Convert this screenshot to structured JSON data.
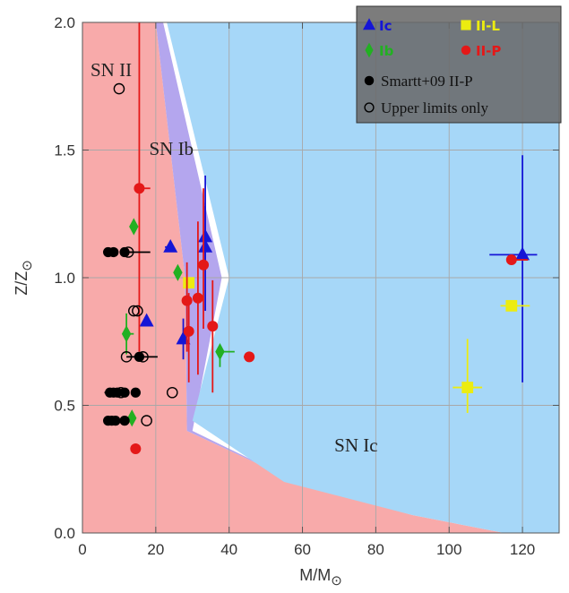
{
  "chart_data": {
    "type": "scatter",
    "title": "",
    "xlabel_main": "M/M",
    "xlabel_sub": "⊙",
    "ylabel_main": "Z/Z",
    "ylabel_sub": "⊙",
    "xlim": [
      0,
      130
    ],
    "ylim": [
      0.0,
      2.0
    ],
    "x_ticks": [
      0,
      20,
      40,
      60,
      80,
      100,
      120
    ],
    "y_ticks": [
      0.0,
      0.5,
      1.0,
      1.5,
      2.0
    ],
    "x_tick_labels": [
      "0",
      "20",
      "40",
      "60",
      "80",
      "100",
      "120"
    ],
    "y_tick_labels": [
      "0.0",
      "0.5",
      "1.0",
      "1.5",
      "2.0"
    ],
    "grid": true,
    "regions": [
      {
        "label": "SN II",
        "color": "#f8aaaa",
        "boundary": [
          [
            0,
            0
          ],
          [
            0,
            2
          ],
          [
            20,
            2
          ],
          [
            28,
            1.0
          ],
          [
            28.5,
            0.4
          ],
          [
            60,
            0.19
          ],
          [
            90,
            0.07
          ],
          [
            115,
            0
          ]
        ]
      },
      {
        "label": "SN Ib",
        "color": "#b4a6ee",
        "boundary": [
          [
            20,
            2
          ],
          [
            22,
            2
          ],
          [
            38,
            1.0
          ],
          [
            30,
            0.4
          ],
          [
            60,
            0.19
          ],
          [
            90,
            0.07
          ],
          [
            115,
            0
          ],
          [
            90,
            0.07
          ],
          [
            60,
            0.19
          ],
          [
            28.5,
            0.4
          ],
          [
            28,
            1.0
          ]
        ]
      },
      {
        "label": "SN Ic",
        "color": "#a6d7f8",
        "boundary": [
          [
            23,
            2
          ],
          [
            130,
            2
          ],
          [
            130,
            0
          ],
          [
            115,
            0
          ],
          [
            90,
            0.07
          ],
          [
            55,
            0.2
          ],
          [
            30,
            0.44
          ],
          [
            40,
            1.0
          ]
        ]
      }
    ],
    "region_labels": [
      {
        "text": "SN II",
        "x": 2.2,
        "y": 1.79
      },
      {
        "text": "SN Ib",
        "x": 18.2,
        "y": 1.48
      },
      {
        "text": "SN Ic",
        "x": 68.7,
        "y": 0.32
      }
    ],
    "legend": {
      "position": "top-right",
      "entries": [
        {
          "label": "Ic",
          "marker": "triangle",
          "color": "#1515d6"
        },
        {
          "label": "II-L",
          "marker": "square",
          "color": "#ecec10"
        },
        {
          "label": "Ib",
          "marker": "diamond",
          "color": "#22b022"
        },
        {
          "label": "II-P",
          "marker": "circle",
          "color": "#e41818"
        },
        {
          "label": "Smartt+09 II-P",
          "marker": "circle",
          "color": "#000000"
        },
        {
          "label": "Upper limits only",
          "marker": "open-circle",
          "color": "#000000"
        }
      ]
    },
    "series": [
      {
        "type": "Ic",
        "marker": "triangle",
        "color": "#1515d6",
        "points": [
          {
            "x": 24,
            "y": 1.12,
            "xerr": [
              1.5,
              0
            ],
            "yerr": [
              0,
              0
            ]
          },
          {
            "x": 33.5,
            "y": 1.16,
            "xerr": [
              0,
              0
            ],
            "yerr": [
              0.12,
              0.12
            ]
          },
          {
            "x": 33.5,
            "y": 1.12,
            "xerr": [
              0,
              0
            ],
            "yerr": [
              0.25,
              0.28
            ]
          },
          {
            "x": 17.5,
            "y": 0.83,
            "xerr": [
              0,
              0
            ],
            "yerr": [
              0,
              0
            ]
          },
          {
            "x": 27.5,
            "y": 0.76,
            "xerr": [
              0,
              0
            ],
            "yerr": [
              0.08,
              0.08
            ]
          },
          {
            "x": 120,
            "y": 1.09,
            "xerr": [
              9,
              4
            ],
            "yerr": [
              0.5,
              0.39
            ]
          }
        ]
      },
      {
        "type": "II-L",
        "marker": "square",
        "color": "#ecec10",
        "points": [
          {
            "x": 29,
            "y": 0.98,
            "xerr": [
              0,
              0
            ],
            "yerr": [
              0,
              0
            ]
          },
          {
            "x": 105,
            "y": 0.57,
            "xerr": [
              4,
              4
            ],
            "yerr": [
              0.1,
              0.19
            ]
          },
          {
            "x": 117,
            "y": 0.89,
            "xerr": [
              3,
              5
            ],
            "yerr": [
              0,
              0
            ]
          }
        ]
      },
      {
        "type": "Ib",
        "marker": "diamond",
        "color": "#22b022",
        "points": [
          {
            "x": 14,
            "y": 1.2,
            "xerr": [
              0,
              0
            ],
            "yerr": [
              0,
              0
            ]
          },
          {
            "x": 26,
            "y": 1.02,
            "xerr": [
              0,
              0
            ],
            "yerr": [
              0,
              0
            ]
          },
          {
            "x": 12,
            "y": 0.78,
            "xerr": [
              0,
              2
            ],
            "yerr": [
              0.08,
              0.08
            ]
          },
          {
            "x": 37.5,
            "y": 0.71,
            "xerr": [
              0,
              4
            ],
            "yerr": [
              0.06,
              0
            ]
          },
          {
            "x": 13.5,
            "y": 0.45,
            "xerr": [
              0,
              0
            ],
            "yerr": [
              0,
              0
            ]
          }
        ]
      },
      {
        "type": "II-P",
        "marker": "circle",
        "color": "#e41818",
        "points": [
          {
            "x": 15.5,
            "y": 1.35,
            "xerr": [
              0,
              3
            ],
            "yerr": [
              0.64,
              0.65
            ]
          },
          {
            "x": 33,
            "y": 1.05,
            "xerr": [
              0,
              0
            ],
            "yerr": [
              0.25,
              0.3
            ]
          },
          {
            "x": 31.5,
            "y": 0.92,
            "xerr": [
              0,
              0
            ],
            "yerr": [
              0.3,
              0.3
            ]
          },
          {
            "x": 28.5,
            "y": 0.91,
            "xerr": [
              0,
              0
            ],
            "yerr": [
              0.2,
              0.15
            ]
          },
          {
            "x": 29,
            "y": 0.79,
            "xerr": [
              0,
              0
            ],
            "yerr": [
              0.2,
              0.15
            ]
          },
          {
            "x": 35.5,
            "y": 0.81,
            "xerr": [
              0,
              0
            ],
            "yerr": [
              0.26,
              0.18
            ]
          },
          {
            "x": 45.5,
            "y": 0.69,
            "xerr": [
              1.5,
              0
            ],
            "yerr": [
              0,
              0
            ]
          },
          {
            "x": 14.5,
            "y": 0.33,
            "xerr": [
              0,
              0
            ],
            "yerr": [
              0,
              0
            ]
          },
          {
            "x": 117,
            "y": 1.07,
            "xerr": [
              0,
              4.5
            ],
            "yerr": [
              0,
              0
            ]
          }
        ]
      },
      {
        "type": "Smartt+09 II-P",
        "marker": "circle",
        "color": "#000000",
        "points": [
          {
            "x": 7,
            "y": 1.1
          },
          {
            "x": 8.5,
            "y": 1.1
          },
          {
            "x": 11.5,
            "y": 1.1,
            "xerr": [
              0,
              2.5
            ]
          },
          {
            "x": 15.5,
            "y": 0.69,
            "xerr": [
              0,
              5
            ]
          },
          {
            "x": 7.5,
            "y": 0.55
          },
          {
            "x": 8.5,
            "y": 0.55
          },
          {
            "x": 9.5,
            "y": 0.55
          },
          {
            "x": 11.5,
            "y": 0.55
          },
          {
            "x": 14.5,
            "y": 0.55
          },
          {
            "x": 7,
            "y": 0.44
          },
          {
            "x": 8,
            "y": 0.44
          },
          {
            "x": 9,
            "y": 0.44
          },
          {
            "x": 11.5,
            "y": 0.44,
            "xerr": [
              2.5,
              0
            ]
          }
        ]
      },
      {
        "type": "Upper limits only",
        "marker": "open-circle",
        "color": "#000000",
        "points": [
          {
            "x": 10,
            "y": 1.74
          },
          {
            "x": 12.5,
            "y": 1.1,
            "xerr": [
              0,
              6
            ]
          },
          {
            "x": 14,
            "y": 0.87
          },
          {
            "x": 15,
            "y": 0.87
          },
          {
            "x": 12,
            "y": 0.69,
            "xerr": [
              0,
              3
            ]
          },
          {
            "x": 16.5,
            "y": 0.69
          },
          {
            "x": 10.5,
            "y": 0.55,
            "xerr": [
              4.5,
              0
            ]
          },
          {
            "x": 24.5,
            "y": 0.55
          },
          {
            "x": 17.5,
            "y": 0.44
          }
        ]
      }
    ]
  }
}
